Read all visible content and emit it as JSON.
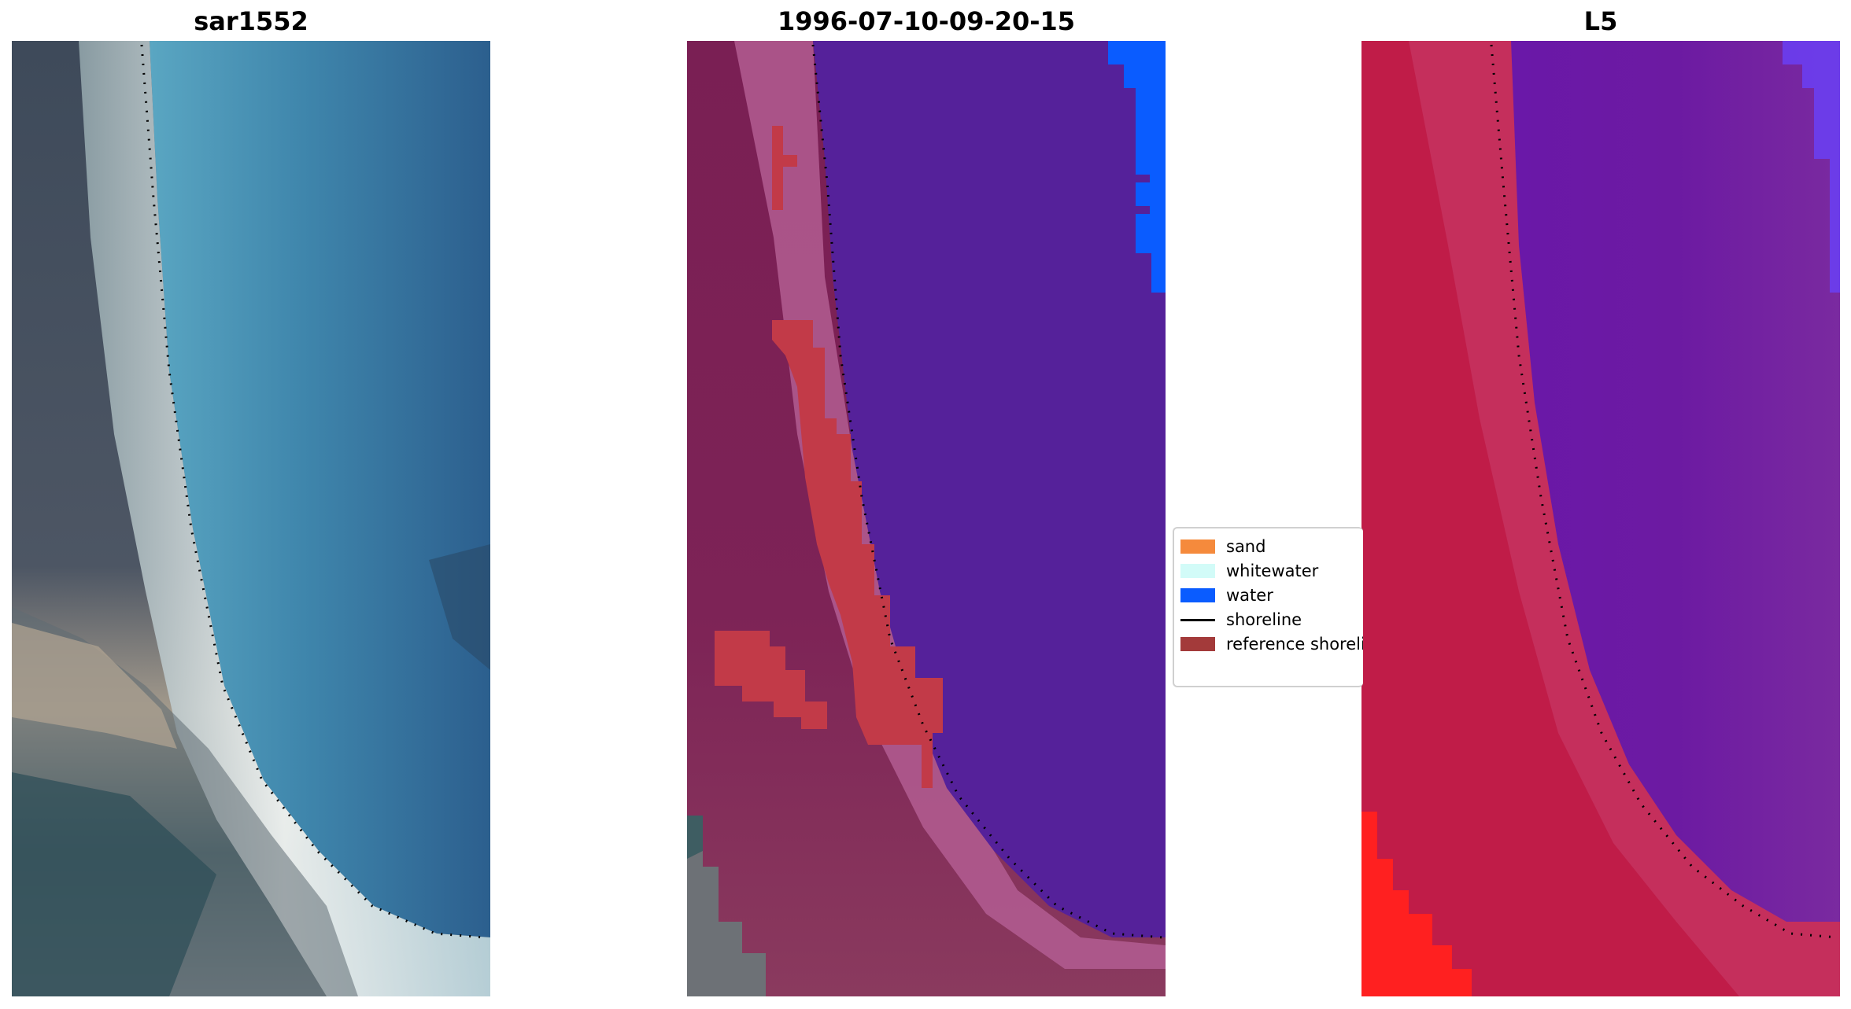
{
  "panels": [
    {
      "title": "sar1552"
    },
    {
      "title": "1996-07-10-09-20-15"
    },
    {
      "title": "L5"
    }
  ],
  "legend": {
    "items": [
      {
        "label": "sand",
        "color": "#f58a3c",
        "kind": "patch"
      },
      {
        "label": "whitewater",
        "color": "#d2fbf8",
        "kind": "patch"
      },
      {
        "label": "water",
        "color": "#0a5cff",
        "kind": "patch"
      },
      {
        "label": "shoreline",
        "color": "#000000",
        "kind": "line"
      },
      {
        "label": "reference shoreline",
        "color": "#a33a3a",
        "kind": "patch"
      }
    ]
  },
  "colors": {
    "rgb_water": "#3f86a8",
    "rgb_beach": "#f2f4f3",
    "class_land": "#8a2a5a",
    "class_water": "#55219a",
    "class_blue": "#0a5cff",
    "class_red": "#c23a48",
    "ndwi_land": "#c01c48",
    "ndwi_water": "#6a1aa0",
    "ndwi_bright_red": "#ff2020"
  }
}
